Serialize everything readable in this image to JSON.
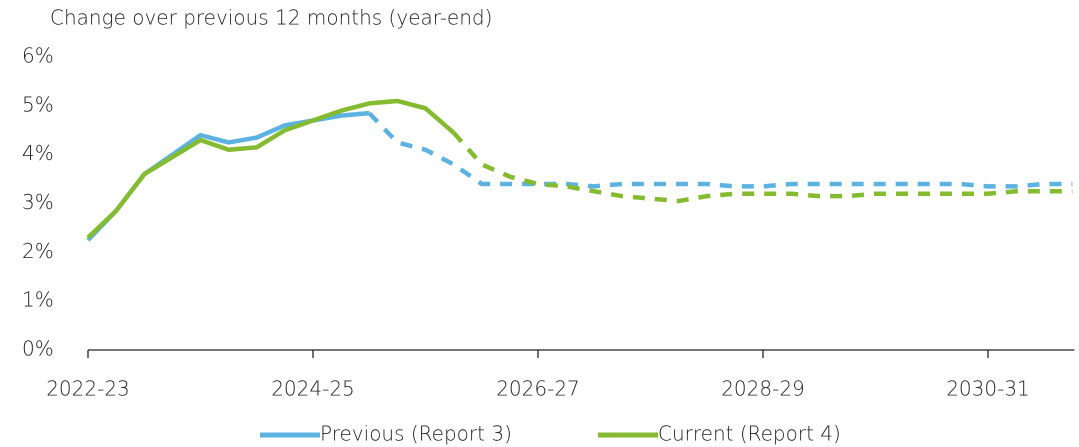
{
  "chart_data": {
    "type": "line",
    "title": "Change over previous 12 months (year-end)",
    "categories": [
      "2022-23",
      null,
      null,
      null,
      null,
      null,
      null,
      null,
      "2024-25",
      null,
      null,
      null,
      null,
      null,
      null,
      null,
      "2026-27",
      null,
      null,
      null,
      null,
      null,
      null,
      null,
      "2028-29",
      null,
      null,
      null,
      null,
      null,
      null,
      null,
      "2030-31",
      null,
      null,
      null
    ],
    "series": [
      {
        "name": "Previous (Report 3)",
        "color": "#5cb3e1",
        "dash_from": 10,
        "values": [
          2.25,
          2.85,
          3.6,
          4.0,
          4.4,
          4.25,
          4.35,
          4.6,
          4.7,
          4.8,
          4.85,
          4.25,
          4.1,
          3.8,
          3.4,
          3.4,
          3.4,
          3.4,
          3.35,
          3.4,
          3.4,
          3.4,
          3.4,
          3.35,
          3.35,
          3.4,
          3.4,
          3.4,
          3.4,
          3.4,
          3.4,
          3.4,
          3.35,
          3.35,
          3.4,
          3.4
        ]
      },
      {
        "name": "Current (Report 4)",
        "color": "#84bb31",
        "dash_from": 13,
        "values": [
          2.3,
          2.85,
          3.6,
          3.95,
          4.3,
          4.1,
          4.15,
          4.5,
          4.7,
          4.9,
          5.05,
          5.1,
          4.95,
          4.45,
          3.8,
          3.55,
          3.4,
          3.35,
          3.25,
          3.15,
          3.1,
          3.05,
          3.15,
          3.2,
          3.2,
          3.2,
          3.15,
          3.15,
          3.2,
          3.2,
          3.2,
          3.2,
          3.2,
          3.25,
          3.25,
          3.25
        ]
      }
    ],
    "ylim": [
      0,
      6
    ],
    "yticks": [
      {
        "value": 0,
        "label": "0%"
      },
      {
        "value": 1,
        "label": "1%"
      },
      {
        "value": 2,
        "label": "2%"
      },
      {
        "value": 3,
        "label": "3%"
      },
      {
        "value": 4,
        "label": "4%"
      },
      {
        "value": 5,
        "label": "5%"
      },
      {
        "value": 6,
        "label": "6%"
      }
    ],
    "grid": false,
    "legend": "bottom"
  }
}
